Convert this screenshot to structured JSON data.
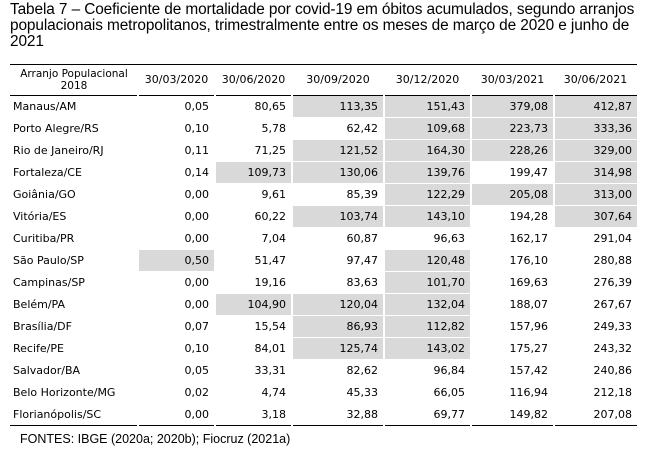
{
  "caption": "Tabela 7 – Coeficiente de mortalidade por covid-19 em óbitos acumulados, segundo arranjos populacionais metropolitanos, trimestralmente entre os meses de março de 2020 e junho de 2021",
  "table": {
    "header_first": "Arranjo Populacional 2018",
    "date_headers": [
      "30/03/2020",
      "30/06/2020",
      "30/09/2020",
      "30/12/2020",
      "30/03/2021",
      "30/06/2021"
    ],
    "highlight_color": "#d9d9d9",
    "rows": [
      {
        "name": "Manaus/AM",
        "values": [
          "0,05",
          "80,65",
          "113,35",
          "151,43",
          "379,08",
          "412,87"
        ],
        "highlight": [
          false,
          false,
          true,
          true,
          true,
          true
        ]
      },
      {
        "name": "Porto Alegre/RS",
        "values": [
          "0,10",
          "5,78",
          "62,42",
          "109,68",
          "223,73",
          "333,36"
        ],
        "highlight": [
          false,
          false,
          false,
          true,
          true,
          true
        ]
      },
      {
        "name": "Rio de Janeiro/RJ",
        "values": [
          "0,11",
          "71,25",
          "121,52",
          "164,30",
          "228,26",
          "329,00"
        ],
        "highlight": [
          false,
          false,
          true,
          true,
          true,
          true
        ]
      },
      {
        "name": "Fortaleza/CE",
        "values": [
          "0,14",
          "109,73",
          "130,06",
          "139,76",
          "199,47",
          "314,98"
        ],
        "highlight": [
          false,
          true,
          true,
          true,
          false,
          true
        ]
      },
      {
        "name": "Goiânia/GO",
        "values": [
          "0,00",
          "9,61",
          "85,39",
          "122,29",
          "205,08",
          "313,00"
        ],
        "highlight": [
          false,
          false,
          false,
          true,
          true,
          true
        ]
      },
      {
        "name": "Vitória/ES",
        "values": [
          "0,00",
          "60,22",
          "103,74",
          "143,10",
          "194,28",
          "307,64"
        ],
        "highlight": [
          false,
          false,
          true,
          true,
          false,
          true
        ]
      },
      {
        "name": "Curitiba/PR",
        "values": [
          "0,00",
          "7,04",
          "60,87",
          "96,63",
          "162,17",
          "291,04"
        ],
        "highlight": [
          false,
          false,
          false,
          false,
          false,
          false
        ]
      },
      {
        "name": "São Paulo/SP",
        "values": [
          "0,50",
          "51,47",
          "97,47",
          "120,48",
          "176,10",
          "280,88"
        ],
        "highlight": [
          true,
          false,
          false,
          true,
          false,
          false
        ]
      },
      {
        "name": "Campinas/SP",
        "values": [
          "0,00",
          "19,16",
          "83,63",
          "101,70",
          "169,63",
          "276,39"
        ],
        "highlight": [
          false,
          false,
          false,
          true,
          false,
          false
        ]
      },
      {
        "name": "Belém/PA",
        "values": [
          "0,00",
          "104,90",
          "120,04",
          "132,04",
          "188,07",
          "267,67"
        ],
        "highlight": [
          false,
          true,
          true,
          true,
          false,
          false
        ]
      },
      {
        "name": "Brasília/DF",
        "values": [
          "0,07",
          "15,54",
          "86,93",
          "112,82",
          "157,96",
          "249,33"
        ],
        "highlight": [
          false,
          false,
          true,
          true,
          false,
          false
        ]
      },
      {
        "name": "Recife/PE",
        "values": [
          "0,10",
          "84,01",
          "125,74",
          "143,02",
          "175,27",
          "243,32"
        ],
        "highlight": [
          false,
          false,
          true,
          true,
          false,
          false
        ]
      },
      {
        "name": "Salvador/BA",
        "values": [
          "0,05",
          "33,31",
          "82,62",
          "96,84",
          "157,42",
          "240,86"
        ],
        "highlight": [
          false,
          false,
          false,
          false,
          false,
          false
        ]
      },
      {
        "name": "Belo Horizonte/MG",
        "values": [
          "0,02",
          "4,74",
          "45,33",
          "66,05",
          "116,94",
          "212,18"
        ],
        "highlight": [
          false,
          false,
          false,
          false,
          false,
          false
        ]
      },
      {
        "name": "Florianópolis/SC",
        "values": [
          "0,00",
          "3,18",
          "32,88",
          "69,77",
          "149,82",
          "207,08"
        ],
        "highlight": [
          false,
          false,
          false,
          false,
          false,
          false
        ]
      }
    ]
  },
  "source": "FONTES: IBGE (2020a; 2020b); Fiocruz (2021a)"
}
